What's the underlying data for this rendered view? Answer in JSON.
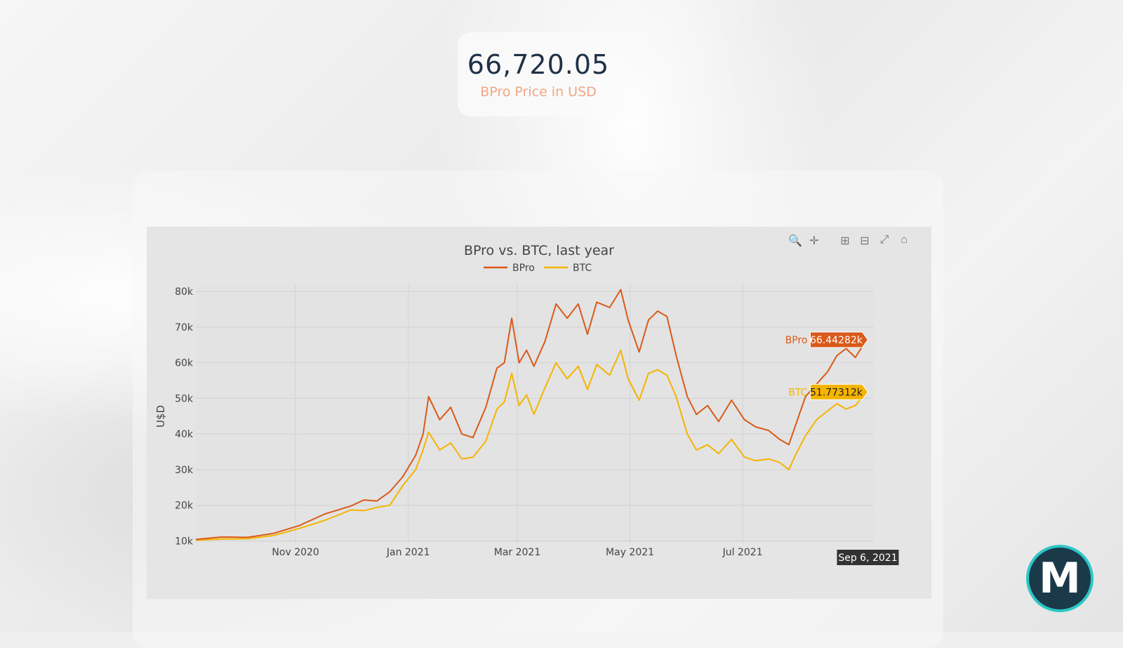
{
  "price": {
    "value": "66,720.05",
    "label": "BPro Price in USD"
  },
  "toolbar": {
    "icons": [
      "zoom-icon",
      "pan-icon",
      "zoom-in-icon",
      "zoom-out-icon",
      "autoscale-icon",
      "reset-axes-icon"
    ],
    "glyphs": [
      "🔍",
      "✛",
      "⊞",
      "⊟",
      "⤢",
      "⌂"
    ]
  },
  "logo": {
    "letter": "M"
  },
  "colors": {
    "bpro": "#d95a1a",
    "btc": "#f5b400",
    "plot_bg": "#e5e5e5",
    "grid": "#d2d2d2"
  },
  "chart_data": {
    "type": "line",
    "title": "BPro vs. BTC, last year",
    "ylabel": "U$D",
    "xlabel": "",
    "ylim": [
      9500,
      82000
    ],
    "yticks": [
      10000,
      20000,
      30000,
      40000,
      50000,
      60000,
      70000,
      80000
    ],
    "ytick_labels": [
      "10k",
      "20k",
      "30k",
      "40k",
      "50k",
      "60k",
      "70k",
      "80k"
    ],
    "xlim": [
      "2020-09-08",
      "2021-09-10"
    ],
    "xticks": [
      "2020-11-01",
      "2021-01-01",
      "2021-03-01",
      "2021-05-01",
      "2021-07-01"
    ],
    "xtick_labels": [
      "Nov 2020",
      "Jan 2021",
      "Mar 2021",
      "May 2021",
      "Jul 2021"
    ],
    "legend": {
      "placement": "top-center"
    },
    "grid": true,
    "hover": {
      "date_label": "Sep 6, 2021",
      "date": "2021-09-06",
      "bpro": {
        "name": "BPro",
        "value_label": "66.44282k",
        "value": 66442.82
      },
      "btc": {
        "name": "BTC",
        "value_label": "51.77312k",
        "value": 51773.12
      }
    },
    "series": [
      {
        "name": "BPro",
        "color": "#d95a1a",
        "points": [
          [
            "2020-09-08",
            10400
          ],
          [
            "2020-09-22",
            11100
          ],
          [
            "2020-10-06",
            11000
          ],
          [
            "2020-10-20",
            12100
          ],
          [
            "2020-11-03",
            14300
          ],
          [
            "2020-11-17",
            17600
          ],
          [
            "2020-12-01",
            19800
          ],
          [
            "2020-12-08",
            21500
          ],
          [
            "2020-12-15",
            21200
          ],
          [
            "2020-12-22",
            23800
          ],
          [
            "2020-12-29",
            28000
          ],
          [
            "2021-01-05",
            34000
          ],
          [
            "2021-01-09",
            40000
          ],
          [
            "2021-01-12",
            50500
          ],
          [
            "2021-01-18",
            44000
          ],
          [
            "2021-01-24",
            47500
          ],
          [
            "2021-01-30",
            40000
          ],
          [
            "2021-02-05",
            39000
          ],
          [
            "2021-02-12",
            47500
          ],
          [
            "2021-02-18",
            58500
          ],
          [
            "2021-02-22",
            60000
          ],
          [
            "2021-02-26",
            72500
          ],
          [
            "2021-03-02",
            60000
          ],
          [
            "2021-03-06",
            63500
          ],
          [
            "2021-03-10",
            59000
          ],
          [
            "2021-03-16",
            66000
          ],
          [
            "2021-03-22",
            76500
          ],
          [
            "2021-03-28",
            72500
          ],
          [
            "2021-04-03",
            76500
          ],
          [
            "2021-04-08",
            68000
          ],
          [
            "2021-04-13",
            77000
          ],
          [
            "2021-04-20",
            75500
          ],
          [
            "2021-04-26",
            80500
          ],
          [
            "2021-04-30",
            72000
          ],
          [
            "2021-05-06",
            63000
          ],
          [
            "2021-05-11",
            72000
          ],
          [
            "2021-05-16",
            74500
          ],
          [
            "2021-05-21",
            73000
          ],
          [
            "2021-05-26",
            62000
          ],
          [
            "2021-06-01",
            50500
          ],
          [
            "2021-06-06",
            45500
          ],
          [
            "2021-06-12",
            48000
          ],
          [
            "2021-06-18",
            43500
          ],
          [
            "2021-06-25",
            49500
          ],
          [
            "2021-07-02",
            44000
          ],
          [
            "2021-07-08",
            42000
          ],
          [
            "2021-07-15",
            41000
          ],
          [
            "2021-07-21",
            38500
          ],
          [
            "2021-07-26",
            37000
          ],
          [
            "2021-07-30",
            43000
          ],
          [
            "2021-08-04",
            50500
          ],
          [
            "2021-08-10",
            54000
          ],
          [
            "2021-08-16",
            57500
          ],
          [
            "2021-08-21",
            62000
          ],
          [
            "2021-08-26",
            64000
          ],
          [
            "2021-08-31",
            61500
          ],
          [
            "2021-09-06",
            66442.82
          ]
        ]
      },
      {
        "name": "BTC",
        "color": "#f5b400",
        "points": [
          [
            "2020-09-08",
            10200
          ],
          [
            "2020-09-22",
            10500
          ],
          [
            "2020-10-06",
            10600
          ],
          [
            "2020-10-20",
            11500
          ],
          [
            "2020-11-03",
            13500
          ],
          [
            "2020-11-17",
            15800
          ],
          [
            "2020-12-01",
            18700
          ],
          [
            "2020-12-08",
            18500
          ],
          [
            "2020-12-15",
            19400
          ],
          [
            "2020-12-22",
            20000
          ],
          [
            "2020-12-29",
            25500
          ],
          [
            "2021-01-05",
            30000
          ],
          [
            "2021-01-09",
            35500
          ],
          [
            "2021-01-12",
            40500
          ],
          [
            "2021-01-18",
            35500
          ],
          [
            "2021-01-24",
            37500
          ],
          [
            "2021-01-30",
            33000
          ],
          [
            "2021-02-05",
            33500
          ],
          [
            "2021-02-12",
            38000
          ],
          [
            "2021-02-18",
            47000
          ],
          [
            "2021-02-22",
            49000
          ],
          [
            "2021-02-26",
            57000
          ],
          [
            "2021-03-02",
            48000
          ],
          [
            "2021-03-06",
            51000
          ],
          [
            "2021-03-10",
            45500
          ],
          [
            "2021-03-16",
            53000
          ],
          [
            "2021-03-22",
            60000
          ],
          [
            "2021-03-28",
            55500
          ],
          [
            "2021-04-03",
            59000
          ],
          [
            "2021-04-08",
            52500
          ],
          [
            "2021-04-13",
            59500
          ],
          [
            "2021-04-20",
            56500
          ],
          [
            "2021-04-26",
            63500
          ],
          [
            "2021-04-30",
            55500
          ],
          [
            "2021-05-06",
            49500
          ],
          [
            "2021-05-11",
            57000
          ],
          [
            "2021-05-16",
            58000
          ],
          [
            "2021-05-21",
            56500
          ],
          [
            "2021-05-26",
            50500
          ],
          [
            "2021-06-01",
            40000
          ],
          [
            "2021-06-06",
            35500
          ],
          [
            "2021-06-12",
            37000
          ],
          [
            "2021-06-18",
            34500
          ],
          [
            "2021-06-25",
            38500
          ],
          [
            "2021-07-02",
            33500
          ],
          [
            "2021-07-08",
            32500
          ],
          [
            "2021-07-15",
            33000
          ],
          [
            "2021-07-21",
            32000
          ],
          [
            "2021-07-26",
            30000
          ],
          [
            "2021-07-30",
            34500
          ],
          [
            "2021-08-04",
            39500
          ],
          [
            "2021-08-10",
            44000
          ],
          [
            "2021-08-16",
            46500
          ],
          [
            "2021-08-21",
            48500
          ],
          [
            "2021-08-26",
            47000
          ],
          [
            "2021-08-31",
            48000
          ],
          [
            "2021-09-06",
            51773.12
          ]
        ]
      }
    ]
  }
}
